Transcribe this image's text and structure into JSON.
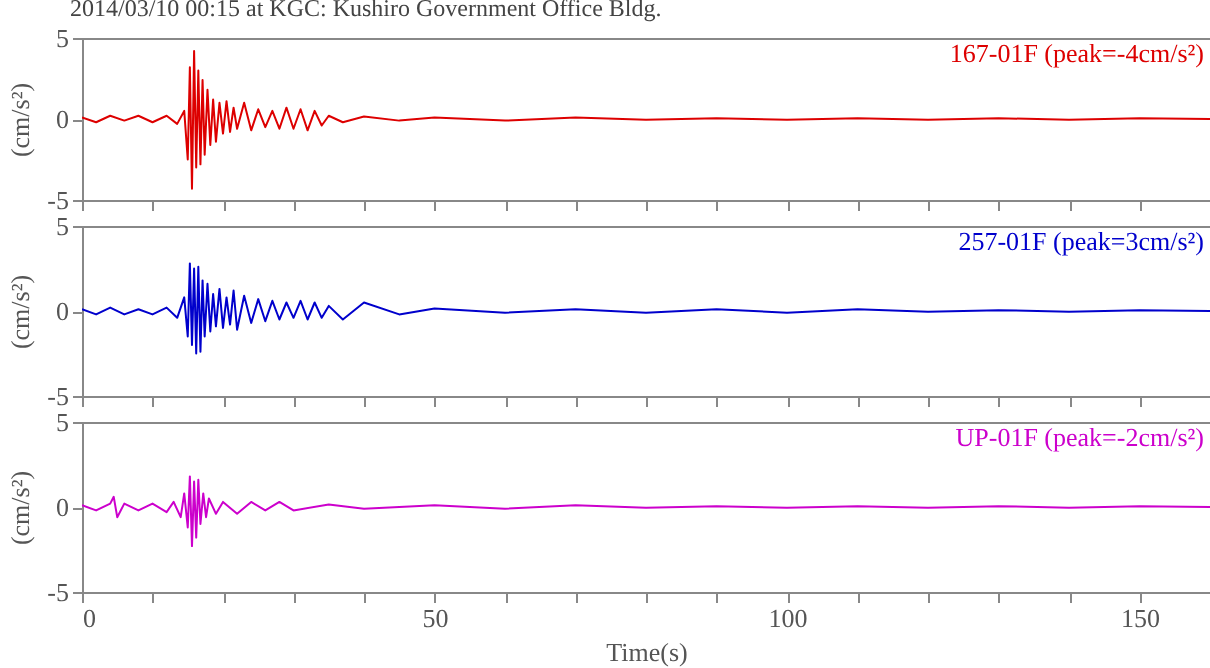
{
  "chart_data": [
    {
      "type": "line",
      "title": "2014/03/10 00:15 at KGC: Kushiro Government Office Bldg.",
      "ylabel": "(cm/s²)",
      "tick_labels": "y",
      "xlim": [
        0,
        160
      ],
      "xticks": [
        0,
        {
          "value": 10,
          "label": null
        },
        {
          "value": 20,
          "label": null
        },
        {
          "value": 30,
          "label": null
        },
        {
          "value": 40,
          "label": null
        },
        50,
        {
          "value": 60,
          "label": null
        },
        {
          "value": 70,
          "label": null
        },
        {
          "value": 80,
          "label": null
        },
        {
          "value": 90,
          "label": null
        },
        100,
        {
          "value": 110,
          "label": null
        },
        {
          "value": 120,
          "label": null
        },
        {
          "value": 130,
          "label": null
        },
        {
          "value": 140,
          "label": null
        },
        150
      ],
      "ylim": [
        -5,
        5
      ],
      "yticks": [
        -5,
        0,
        5
      ],
      "series": [
        {
          "name": "167-01F (peak=-4cm/s²)",
          "color": "#dd0000",
          "x": [
            0,
            2,
            4,
            6,
            8,
            10,
            12,
            13.5,
            14.5,
            15,
            15.3,
            15.6,
            15.9,
            16.2,
            16.5,
            16.8,
            17.1,
            17.4,
            17.8,
            18.2,
            18.6,
            19,
            19.5,
            20,
            20.5,
            21,
            21.5,
            22,
            23,
            24,
            25,
            26,
            27,
            28,
            29,
            30,
            31,
            32,
            33,
            34,
            35,
            37,
            40,
            45,
            50,
            60,
            70,
            80,
            90,
            100,
            110,
            120,
            130,
            140,
            150,
            160
          ],
          "values": [
            0.1,
            -0.2,
            0.2,
            -0.1,
            0.2,
            -0.2,
            0.2,
            -0.3,
            0.5,
            -2.5,
            3.2,
            -4.3,
            4.2,
            -3.0,
            3.0,
            -2.8,
            2.4,
            -2.2,
            1.8,
            -1.6,
            1.2,
            -1.4,
            1.0,
            -0.9,
            1.1,
            -0.8,
            0.7,
            -0.6,
            1.0,
            -0.7,
            0.6,
            -0.5,
            0.5,
            -0.6,
            0.7,
            -0.6,
            0.6,
            -0.7,
            0.5,
            -0.4,
            0.2,
            -0.2,
            0.15,
            -0.1,
            0.1,
            -0.1,
            0.1,
            -0.05,
            0.05,
            -0.05,
            0.05,
            -0.05,
            0.05,
            -0.05,
            0.05,
            0.0
          ]
        }
      ]
    },
    {
      "type": "line",
      "ylabel": "(cm/s²)",
      "tick_labels": "y",
      "xlim": [
        0,
        160
      ],
      "xticks": [
        0,
        {
          "value": 10,
          "label": null
        },
        {
          "value": 20,
          "label": null
        },
        {
          "value": 30,
          "label": null
        },
        {
          "value": 40,
          "label": null
        },
        50,
        {
          "value": 60,
          "label": null
        },
        {
          "value": 70,
          "label": null
        },
        {
          "value": 80,
          "label": null
        },
        {
          "value": 90,
          "label": null
        },
        100,
        {
          "value": 110,
          "label": null
        },
        {
          "value": 120,
          "label": null
        },
        {
          "value": 130,
          "label": null
        },
        {
          "value": 140,
          "label": null
        },
        150
      ],
      "ylim": [
        -5,
        5
      ],
      "yticks": [
        -5,
        0,
        5
      ],
      "series": [
        {
          "name": "257-01F (peak=3cm/s²)",
          "color": "#0000cc",
          "x": [
            0,
            2,
            4,
            6,
            8,
            10,
            12,
            13.5,
            14.5,
            15,
            15.3,
            15.6,
            15.9,
            16.2,
            16.5,
            16.8,
            17.1,
            17.4,
            17.8,
            18.2,
            18.6,
            19,
            19.5,
            20,
            20.5,
            21,
            21.5,
            22,
            23,
            24,
            25,
            26,
            27,
            28,
            29,
            30,
            31,
            32,
            33,
            34,
            35,
            37,
            40,
            45,
            50,
            60,
            70,
            80,
            90,
            100,
            110,
            120,
            130,
            140,
            150,
            160
          ],
          "values": [
            0.1,
            -0.2,
            0.2,
            -0.2,
            0.1,
            -0.2,
            0.2,
            -0.4,
            0.8,
            -1.5,
            2.8,
            -2.0,
            2.5,
            -2.5,
            2.6,
            -2.4,
            1.8,
            -1.5,
            1.6,
            -1.2,
            1.0,
            -0.9,
            1.3,
            -1.0,
            0.8,
            -0.8,
            1.2,
            -1.1,
            0.9,
            -0.7,
            0.7,
            -0.6,
            0.6,
            -0.5,
            0.5,
            -0.4,
            0.6,
            -0.5,
            0.5,
            -0.4,
            0.3,
            -0.5,
            0.5,
            -0.2,
            0.15,
            -0.1,
            0.1,
            -0.1,
            0.1,
            -0.1,
            0.1,
            -0.05,
            0.05,
            -0.05,
            0.05,
            0.0
          ]
        }
      ]
    },
    {
      "type": "line",
      "ylabel": "(cm/s²)",
      "xlabel": "Time(s)",
      "xlim": [
        0,
        160
      ],
      "xticks": [
        0,
        {
          "value": 10,
          "label": null
        },
        {
          "value": 20,
          "label": null
        },
        {
          "value": 30,
          "label": null
        },
        {
          "value": 40,
          "label": null
        },
        50,
        {
          "value": 60,
          "label": null
        },
        {
          "value": 70,
          "label": null
        },
        {
          "value": 80,
          "label": null
        },
        {
          "value": 90,
          "label": null
        },
        100,
        {
          "value": 110,
          "label": null
        },
        {
          "value": 120,
          "label": null
        },
        {
          "value": 130,
          "label": null
        },
        {
          "value": 140,
          "label": null
        },
        150
      ],
      "ylim": [
        -5,
        5
      ],
      "yticks": [
        -5,
        0,
        5
      ],
      "series": [
        {
          "name": "UP-01F (peak=-2cm/s²)",
          "color": "#cc00cc",
          "x": [
            0,
            2,
            4,
            4.5,
            5,
            6,
            8,
            10,
            12,
            13,
            14,
            14.5,
            15,
            15.3,
            15.6,
            15.9,
            16.2,
            16.5,
            16.8,
            17.2,
            17.6,
            18,
            19,
            20,
            22,
            24,
            26,
            28,
            30,
            35,
            40,
            50,
            60,
            70,
            80,
            90,
            100,
            110,
            120,
            130,
            140,
            150,
            160
          ],
          "values": [
            0.1,
            -0.2,
            0.2,
            0.6,
            -0.6,
            0.2,
            -0.2,
            0.2,
            -0.3,
            0.3,
            -0.6,
            0.8,
            -1.2,
            1.8,
            -2.3,
            1.5,
            -1.8,
            1.6,
            -1.0,
            0.8,
            -0.6,
            0.5,
            -0.4,
            0.3,
            -0.4,
            0.3,
            -0.2,
            0.3,
            -0.2,
            0.15,
            -0.1,
            0.1,
            -0.1,
            0.1,
            -0.05,
            0.05,
            -0.05,
            0.05,
            -0.05,
            0.05,
            -0.05,
            0.05,
            0.0
          ]
        }
      ]
    }
  ]
}
